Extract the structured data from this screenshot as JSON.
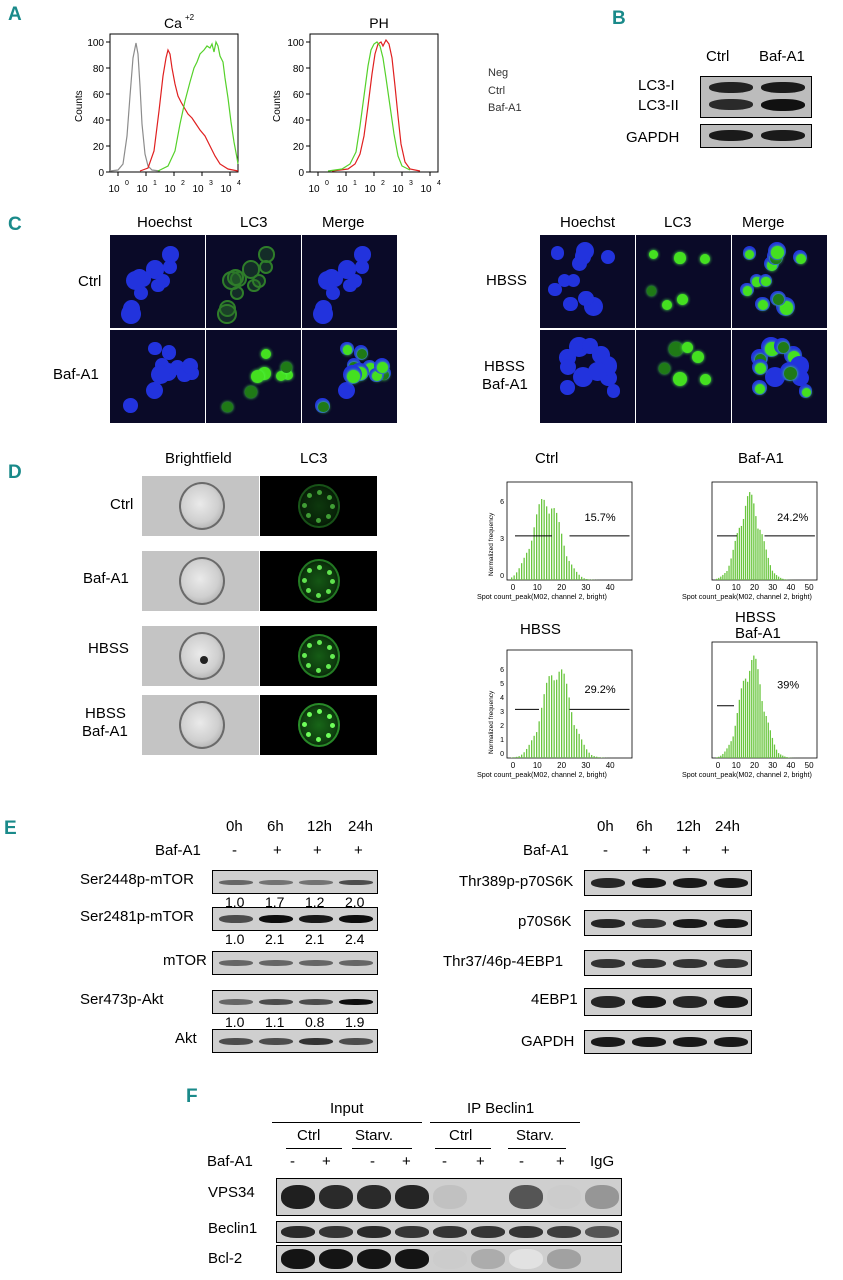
{
  "panels": {
    "A": "A",
    "B": "B",
    "C": "C",
    "D": "D",
    "E": "E",
    "F": "F"
  },
  "panelA": {
    "plot1_title": "Ca",
    "plot1_title_sup": "+2",
    "plot2_title": "PH",
    "ylabel": "Counts",
    "yticks": [
      "100",
      "80",
      "60",
      "40",
      "20",
      "0"
    ],
    "xticks_base": [
      "10",
      "10",
      "10",
      "10",
      "10"
    ],
    "xticks_exp": [
      "0",
      "1",
      "2",
      "3",
      "4"
    ],
    "legend": [
      "Neg",
      "Ctrl",
      "Baf-A1"
    ],
    "colors": {
      "Neg": "#8c8c8c",
      "Ctrl": "#e02020",
      "Baf-A1": "#55d12a"
    }
  },
  "panelB": {
    "cols": [
      "Ctrl",
      "Baf-A1"
    ],
    "rows": [
      "LC3-I",
      "LC3-II",
      "GAPDH"
    ]
  },
  "panelC": {
    "left_headers": [
      "Hoechst",
      "LC3",
      "Merge"
    ],
    "left_rows": [
      "Ctrl",
      "Baf-A1"
    ],
    "right_headers": [
      "Hoechst",
      "LC3",
      "Merge"
    ],
    "right_rows": [
      "HBSS",
      "HBSS",
      "Baf-A1"
    ]
  },
  "panelD": {
    "headers": [
      "Brightfield",
      "LC3"
    ],
    "rows": [
      "Ctrl",
      "Baf-A1",
      "HBSS",
      "HBSS",
      "Baf-A1"
    ],
    "hist_titles": [
      "Ctrl",
      "Baf-A1",
      "HBSS",
      "HBSS",
      "Baf-A1"
    ],
    "percents": [
      "15.7%",
      "24.2%",
      "29.2%",
      "39%"
    ],
    "xlabel": "Spot count_peak(M02, channel 2, bright)",
    "ylabel": "Normalized frequency",
    "xticks_a": [
      "0",
      "10",
      "20",
      "30",
      "40"
    ],
    "xticks_b": [
      "0",
      "10",
      "20",
      "30",
      "40",
      "50"
    ],
    "yticks_ctrl": [
      "6",
      "3",
      "0"
    ],
    "yticks_hbss": [
      "6",
      "5",
      "4",
      "3",
      "2",
      "1",
      "0"
    ]
  },
  "panelE": {
    "times": [
      "0h",
      "6h",
      "12h",
      "24h"
    ],
    "treat_label": "Baf-A1",
    "treat": [
      "-",
      "+",
      "+",
      "+"
    ],
    "left_rows": [
      "Ser2448p-mTOR",
      "Ser2481p-mTOR",
      "mTOR",
      "Ser473p-Akt",
      "Akt"
    ],
    "right_rows": [
      "Thr389p-p70S6K",
      "p70S6K",
      "Thr37/46p-4EBP1",
      "4EBP1",
      "GAPDH"
    ],
    "ratios_mtor2448": [
      "1.0",
      "1.7",
      "1.2",
      "2.0"
    ],
    "ratios_mtor2481": [
      "1.0",
      "2.1",
      "2.1",
      "2.4"
    ],
    "ratios_akt": [
      "1.0",
      "1.1",
      "0.8",
      "1.9"
    ]
  },
  "panelF": {
    "input_label": "Input",
    "ip_label": "IP Beclin1",
    "groups": [
      "Ctrl",
      "Starv.",
      "Ctrl",
      "Starv."
    ],
    "treat_label": "Baf-A1",
    "treat": [
      "-",
      "+",
      "-",
      "+",
      "-",
      "+",
      "-",
      "+"
    ],
    "igg": "IgG",
    "rows": [
      "VPS34",
      "Beclin1",
      "Bcl-2"
    ]
  }
}
